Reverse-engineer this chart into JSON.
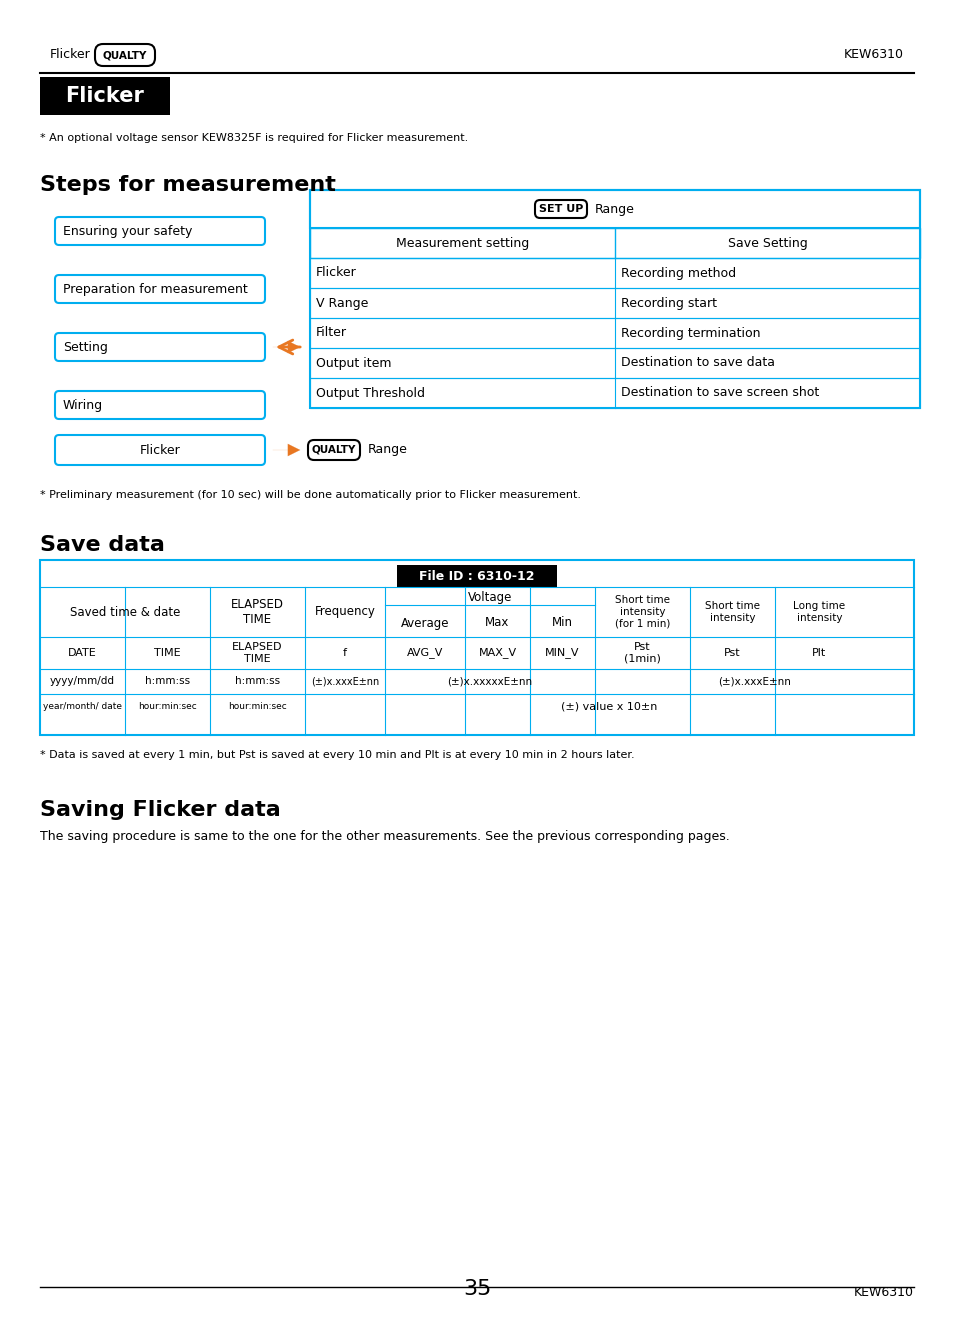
{
  "page_title_left": "Flicker",
  "page_title_right": "KEW6310",
  "qualty_label_header": "QUALTY",
  "section1_title": "Flicker",
  "section1_subtitle": "* An optional voltage sensor KEW8325F is required for Flicker measurement.",
  "section2_title": "Steps for measurement",
  "steps_boxes": [
    "Ensuring your safety",
    "Preparation for measurement",
    "Setting",
    "Wiring"
  ],
  "arrow_at": [
    2
  ],
  "setup_table_header": "SET UP  Range",
  "setup_col1": [
    "Measurement setting",
    "Flicker",
    "V Range",
    "Filter",
    "Output item",
    "Output Threshold"
  ],
  "setup_col2": [
    "Save Setting",
    "Recording method",
    "Recording start",
    "Recording termination",
    "Destination to save data",
    "Destination to save screen shot"
  ],
  "flicker_box": "Flicker",
  "qualty_label_bottom": "QUALTY",
  "prelim_note": "* Preliminary measurement (for 10 sec) will be done automatically prior to Flicker measurement.",
  "section3_title": "Save data",
  "file_id": "File ID : 6310-12",
  "save_data_footer_note": "* Data is saved at every 1 min, but Pst is saved at every 10 min and Plt is at every 10 min in 2 hours later.",
  "section4_title": "Saving Flicker data",
  "section4_body": "The saving procedure is same to the one for the other measurements. See the previous corresponding pages.",
  "page_number": "35",
  "footer_right": "KEW6310",
  "blue": "#1E90FF",
  "dark_blue": "#1565C0",
  "orange": "#E87722",
  "black": "#000000",
  "white": "#FFFFFF",
  "light_blue_border": "#00AEEF"
}
